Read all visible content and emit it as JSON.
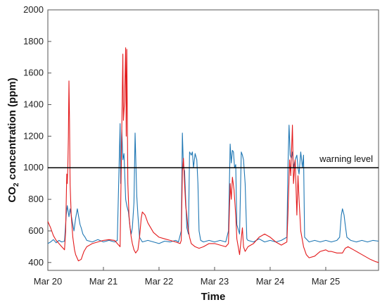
{
  "chart_data": {
    "type": "line",
    "xlabel": "Time",
    "ylabel_main": "CO",
    "ylabel_sub": "2",
    "ylabel_rest": " concentration (ppm)",
    "ylim": [
      350,
      2000
    ],
    "xlim": [
      0,
      5.95
    ],
    "grid": false,
    "legend": "none",
    "x_ticks": [
      {
        "x": 0,
        "label": "Mar 20"
      },
      {
        "x": 1,
        "label": "Mar 21"
      },
      {
        "x": 2,
        "label": "Mar 22"
      },
      {
        "x": 3,
        "label": "Mar 23"
      },
      {
        "x": 4,
        "label": "Mar 24"
      },
      {
        "x": 5,
        "label": "Mar 25"
      }
    ],
    "y_ticks": [
      400,
      600,
      800,
      1000,
      1200,
      1400,
      1600,
      1800,
      2000
    ],
    "reference_line": {
      "y": 1000,
      "label": "warning level",
      "color": "#000000"
    },
    "series": [
      {
        "color": "#1f77b4",
        "points": [
          [
            0.0,
            520
          ],
          [
            0.05,
            530
          ],
          [
            0.1,
            545
          ],
          [
            0.15,
            525
          ],
          [
            0.2,
            540
          ],
          [
            0.25,
            530
          ],
          [
            0.3,
            535
          ],
          [
            0.33,
            700
          ],
          [
            0.35,
            760
          ],
          [
            0.38,
            690
          ],
          [
            0.4,
            740
          ],
          [
            0.42,
            700
          ],
          [
            0.45,
            640
          ],
          [
            0.47,
            600
          ],
          [
            0.5,
            680
          ],
          [
            0.53,
            740
          ],
          [
            0.55,
            700
          ],
          [
            0.58,
            640
          ],
          [
            0.6,
            620
          ],
          [
            0.63,
            580
          ],
          [
            0.67,
            560
          ],
          [
            0.7,
            540
          ],
          [
            0.8,
            530
          ],
          [
            0.9,
            545
          ],
          [
            1.0,
            530
          ],
          [
            1.1,
            540
          ],
          [
            1.2,
            530
          ],
          [
            1.25,
            540
          ],
          [
            1.3,
            1280
          ],
          [
            1.31,
            900
          ],
          [
            1.33,
            1240
          ],
          [
            1.35,
            1050
          ],
          [
            1.37,
            1090
          ],
          [
            1.4,
            800
          ],
          [
            1.42,
            760
          ],
          [
            1.45,
            720
          ],
          [
            1.48,
            620
          ],
          [
            1.5,
            580
          ],
          [
            1.52,
            620
          ],
          [
            1.55,
            780
          ],
          [
            1.57,
            1220
          ],
          [
            1.59,
            950
          ],
          [
            1.6,
            820
          ],
          [
            1.62,
            700
          ],
          [
            1.65,
            560
          ],
          [
            1.7,
            530
          ],
          [
            1.8,
            540
          ],
          [
            1.9,
            530
          ],
          [
            2.0,
            520
          ],
          [
            2.1,
            535
          ],
          [
            2.2,
            530
          ],
          [
            2.3,
            540
          ],
          [
            2.35,
            530
          ],
          [
            2.4,
            600
          ],
          [
            2.42,
            1220
          ],
          [
            2.44,
            1000
          ],
          [
            2.46,
            980
          ],
          [
            2.48,
            800
          ],
          [
            2.5,
            620
          ],
          [
            2.53,
            580
          ],
          [
            2.55,
            1100
          ],
          [
            2.58,
            1080
          ],
          [
            2.6,
            1100
          ],
          [
            2.62,
            1000
          ],
          [
            2.65,
            1090
          ],
          [
            2.68,
            1050
          ],
          [
            2.7,
            900
          ],
          [
            2.72,
            600
          ],
          [
            2.75,
            540
          ],
          [
            2.8,
            530
          ],
          [
            2.9,
            540
          ],
          [
            3.0,
            530
          ],
          [
            3.1,
            540
          ],
          [
            3.2,
            530
          ],
          [
            3.25,
            600
          ],
          [
            3.28,
            1150
          ],
          [
            3.3,
            1030
          ],
          [
            3.32,
            1110
          ],
          [
            3.34,
            1100
          ],
          [
            3.36,
            1000
          ],
          [
            3.38,
            1020
          ],
          [
            3.4,
            640
          ],
          [
            3.45,
            580
          ],
          [
            3.48,
            1100
          ],
          [
            3.5,
            1080
          ],
          [
            3.52,
            1050
          ],
          [
            3.55,
            900
          ],
          [
            3.58,
            550
          ],
          [
            3.6,
            540
          ],
          [
            3.7,
            530
          ],
          [
            3.8,
            550
          ],
          [
            3.9,
            530
          ],
          [
            4.0,
            540
          ],
          [
            4.1,
            530
          ],
          [
            4.2,
            540
          ],
          [
            4.3,
            560
          ],
          [
            4.32,
            1000
          ],
          [
            4.34,
            1270
          ],
          [
            4.36,
            1080
          ],
          [
            4.38,
            1060
          ],
          [
            4.4,
            1100
          ],
          [
            4.42,
            1000
          ],
          [
            4.45,
            1050
          ],
          [
            4.48,
            1080
          ],
          [
            4.5,
            1000
          ],
          [
            4.52,
            960
          ],
          [
            4.55,
            1100
          ],
          [
            4.58,
            1000
          ],
          [
            4.6,
            1080
          ],
          [
            4.62,
            560
          ],
          [
            4.7,
            530
          ],
          [
            4.8,
            540
          ],
          [
            4.9,
            530
          ],
          [
            5.0,
            540
          ],
          [
            5.1,
            530
          ],
          [
            5.2,
            540
          ],
          [
            5.25,
            560
          ],
          [
            5.28,
            700
          ],
          [
            5.3,
            740
          ],
          [
            5.33,
            700
          ],
          [
            5.35,
            640
          ],
          [
            5.38,
            560
          ],
          [
            5.45,
            540
          ],
          [
            5.55,
            530
          ],
          [
            5.65,
            540
          ],
          [
            5.75,
            530
          ],
          [
            5.85,
            540
          ],
          [
            5.95,
            535
          ]
        ]
      },
      {
        "color": "#e31a1c",
        "points": [
          [
            0.0,
            660
          ],
          [
            0.05,
            620
          ],
          [
            0.1,
            570
          ],
          [
            0.15,
            540
          ],
          [
            0.2,
            520
          ],
          [
            0.25,
            500
          ],
          [
            0.3,
            480
          ],
          [
            0.32,
            600
          ],
          [
            0.34,
            960
          ],
          [
            0.35,
            900
          ],
          [
            0.36,
            1000
          ],
          [
            0.37,
            1200
          ],
          [
            0.38,
            1550
          ],
          [
            0.39,
            1300
          ],
          [
            0.4,
            900
          ],
          [
            0.42,
            700
          ],
          [
            0.45,
            560
          ],
          [
            0.48,
            480
          ],
          [
            0.5,
            450
          ],
          [
            0.55,
            410
          ],
          [
            0.6,
            420
          ],
          [
            0.65,
            470
          ],
          [
            0.7,
            500
          ],
          [
            0.8,
            520
          ],
          [
            0.9,
            530
          ],
          [
            1.0,
            540
          ],
          [
            1.1,
            545
          ],
          [
            1.2,
            540
          ],
          [
            1.25,
            520
          ],
          [
            1.3,
            500
          ],
          [
            1.32,
            1000
          ],
          [
            1.35,
            1720
          ],
          [
            1.36,
            1300
          ],
          [
            1.38,
            1420
          ],
          [
            1.4,
            1760
          ],
          [
            1.41,
            1200
          ],
          [
            1.42,
            1750
          ],
          [
            1.44,
            900
          ],
          [
            1.46,
            700
          ],
          [
            1.48,
            620
          ],
          [
            1.5,
            560
          ],
          [
            1.52,
            520
          ],
          [
            1.55,
            480
          ],
          [
            1.58,
            460
          ],
          [
            1.62,
            480
          ],
          [
            1.65,
            560
          ],
          [
            1.68,
            680
          ],
          [
            1.7,
            720
          ],
          [
            1.75,
            700
          ],
          [
            1.8,
            650
          ],
          [
            1.9,
            590
          ],
          [
            2.0,
            560
          ],
          [
            2.1,
            550
          ],
          [
            2.2,
            540
          ],
          [
            2.3,
            530
          ],
          [
            2.38,
            520
          ],
          [
            2.4,
            540
          ],
          [
            2.42,
            980
          ],
          [
            2.44,
            1060
          ],
          [
            2.46,
            900
          ],
          [
            2.48,
            760
          ],
          [
            2.5,
            700
          ],
          [
            2.52,
            620
          ],
          [
            2.55,
            560
          ],
          [
            2.58,
            520
          ],
          [
            2.65,
            500
          ],
          [
            2.72,
            490
          ],
          [
            2.8,
            500
          ],
          [
            2.9,
            520
          ],
          [
            3.0,
            520
          ],
          [
            3.1,
            510
          ],
          [
            3.2,
            500
          ],
          [
            3.25,
            520
          ],
          [
            3.28,
            900
          ],
          [
            3.3,
            800
          ],
          [
            3.32,
            940
          ],
          [
            3.35,
            860
          ],
          [
            3.38,
            700
          ],
          [
            3.4,
            550
          ],
          [
            3.45,
            450
          ],
          [
            3.5,
            620
          ],
          [
            3.52,
            500
          ],
          [
            3.55,
            470
          ],
          [
            3.6,
            500
          ],
          [
            3.7,
            520
          ],
          [
            3.8,
            560
          ],
          [
            3.9,
            580
          ],
          [
            4.0,
            560
          ],
          [
            4.1,
            530
          ],
          [
            4.2,
            510
          ],
          [
            4.3,
            530
          ],
          [
            4.32,
            700
          ],
          [
            4.35,
            1050
          ],
          [
            4.37,
            950
          ],
          [
            4.4,
            1270
          ],
          [
            4.42,
            900
          ],
          [
            4.45,
            1050
          ],
          [
            4.48,
            700
          ],
          [
            4.5,
            950
          ],
          [
            4.52,
            800
          ],
          [
            4.55,
            600
          ],
          [
            4.6,
            500
          ],
          [
            4.65,
            450
          ],
          [
            4.7,
            430
          ],
          [
            4.8,
            440
          ],
          [
            4.9,
            470
          ],
          [
            5.0,
            480
          ],
          [
            5.05,
            470
          ],
          [
            5.1,
            470
          ],
          [
            5.2,
            460
          ],
          [
            5.3,
            460
          ],
          [
            5.35,
            490
          ],
          [
            5.4,
            500
          ],
          [
            5.5,
            480
          ],
          [
            5.6,
            460
          ],
          [
            5.7,
            440
          ],
          [
            5.8,
            420
          ],
          [
            5.9,
            405
          ],
          [
            5.95,
            400
          ]
        ]
      }
    ]
  }
}
